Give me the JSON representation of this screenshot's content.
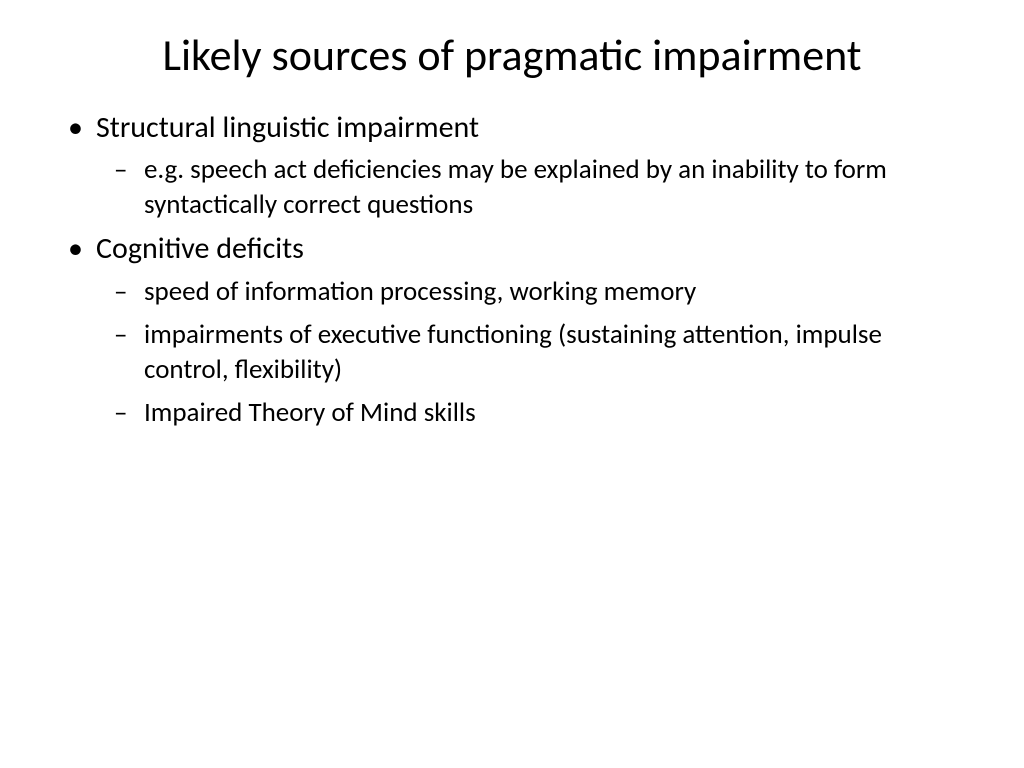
{
  "slide": {
    "title": "Likely sources of pragmatic impairment",
    "bullets": [
      {
        "text": "Structural linguistic impairment",
        "sub": [
          "e.g. speech act deficiencies may be explained by an inability to form syntactically correct questions"
        ]
      },
      {
        "text": "Cognitive deficits",
        "sub": [
          "speed of information processing, working memory",
          "impairments of executive functioning (sustaining attention, impulse control, flexibility)",
          "Impaired Theory of Mind skills"
        ]
      }
    ]
  },
  "styling": {
    "background_color": "#ffffff",
    "text_color": "#000000",
    "title_fontsize": 44,
    "level1_fontsize": 30,
    "level2_fontsize": 27,
    "font_family": "Calibri",
    "level1_bullet": "•",
    "level2_bullet": "–"
  }
}
